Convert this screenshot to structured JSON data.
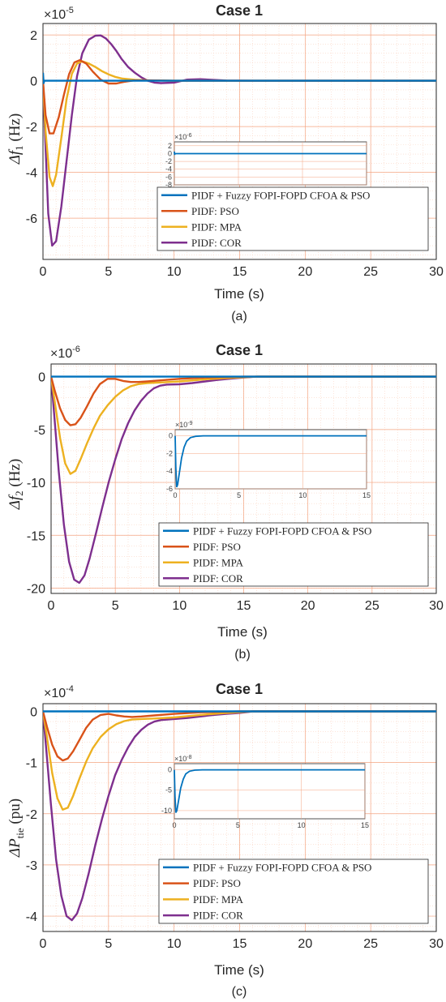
{
  "colors": {
    "series": [
      "#0072BD",
      "#D95319",
      "#EDB120",
      "#7E2F8E"
    ],
    "grid_major": "#f4a582",
    "grid_minor": "#f9d4c2",
    "axis": "#262626"
  },
  "chart_data": [
    {
      "type": "line",
      "title": "Case 1",
      "caption": "(a)",
      "xlabel": "Time (s)",
      "ylabel_main": "Δf",
      "ylabel_sub": "1",
      "ylabel_unit": "(Hz)",
      "exponent_base": "×10",
      "exponent_power": "-5",
      "xlim": [
        0,
        30
      ],
      "ylim": [
        -7.8,
        2.5
      ],
      "xticks": [
        0,
        5,
        10,
        15,
        20,
        25,
        30
      ],
      "xtick_labels": [
        "0",
        "5",
        "10",
        "15",
        "20",
        "25",
        "30"
      ],
      "yticks": [
        2,
        0,
        -2,
        -4,
        -6
      ],
      "ytick_labels": [
        "2",
        "0",
        "-2",
        "-4",
        "-6"
      ],
      "grid": true,
      "minor_grid": true,
      "legend_position": "lower-right",
      "series": [
        {
          "name": "PIDF + Fuzzy FOPI-FOPD CFOA & PSO",
          "x": [
            0,
            0.05,
            0.1,
            0.3,
            30
          ],
          "y": [
            0.35,
            -0.1,
            0,
            0,
            0
          ]
        },
        {
          "name": "PIDF: PSO",
          "x": [
            0,
            0.2,
            0.5,
            0.8,
            1.2,
            1.6,
            2.0,
            2.4,
            2.8,
            3.3,
            3.8,
            4.4,
            5.0,
            5.6,
            6.2,
            7.0,
            8.0,
            10,
            30
          ],
          "y": [
            0,
            -1.5,
            -2.3,
            -2.3,
            -1.6,
            -0.6,
            0.3,
            0.8,
            0.9,
            0.75,
            0.4,
            0.05,
            -0.12,
            -0.12,
            -0.05,
            0.02,
            0.02,
            0,
            0
          ]
        },
        {
          "name": "PIDF: MPA",
          "x": [
            0,
            0.2,
            0.5,
            0.75,
            1.0,
            1.4,
            1.8,
            2.2,
            2.6,
            3.0,
            3.5,
            4.0,
            4.5,
            5.0,
            5.5,
            6.0,
            7.0,
            8.0,
            9.0,
            10,
            30
          ],
          "y": [
            0,
            -2.2,
            -4.2,
            -4.6,
            -4.1,
            -2.5,
            -0.8,
            0.3,
            0.75,
            0.85,
            0.75,
            0.6,
            0.42,
            0.28,
            0.17,
            0.1,
            0.04,
            0.02,
            0.01,
            0,
            0
          ]
        },
        {
          "name": "PIDF: COR",
          "x": [
            0,
            0.2,
            0.4,
            0.7,
            1.0,
            1.4,
            1.8,
            2.2,
            2.6,
            3.0,
            3.5,
            4.0,
            4.4,
            4.8,
            5.2,
            5.6,
            6.0,
            6.5,
            7.0,
            7.5,
            8.0,
            8.5,
            9.0,
            10,
            11,
            12,
            14,
            16,
            30
          ],
          "y": [
            0,
            -2.9,
            -5.8,
            -7.2,
            -7.0,
            -5.5,
            -3.5,
            -1.5,
            0.2,
            1.2,
            1.8,
            1.97,
            1.98,
            1.85,
            1.6,
            1.3,
            0.95,
            0.6,
            0.35,
            0.15,
            0.0,
            -0.08,
            -0.1,
            -0.08,
            0.05,
            0.07,
            0.01,
            0,
            0
          ]
        }
      ],
      "inset": {
        "exponent_base": "×10",
        "exponent_power": "-6",
        "xlim": [
          0,
          15
        ],
        "ylim": [
          -8,
          3
        ],
        "xticks": [
          0,
          5,
          10,
          15
        ],
        "xtick_labels": [
          "0",
          "5",
          "10",
          "15"
        ],
        "yticks": [
          2,
          0,
          -2,
          -4,
          -6,
          -8
        ],
        "ytick_labels": [
          "2",
          "0",
          "-2",
          "-4",
          "-6",
          "-8"
        ],
        "x": [
          0,
          0.02,
          0.05,
          15
        ],
        "y": [
          0.5,
          -0.3,
          0,
          0
        ]
      }
    },
    {
      "type": "line",
      "title": "Case 1",
      "caption": "(b)",
      "xlabel": "Time (s)",
      "ylabel_main": "Δf",
      "ylabel_sub": "2",
      "ylabel_unit": "(Hz)",
      "exponent_base": "×10",
      "exponent_power": "-6",
      "xlim": [
        0,
        30
      ],
      "ylim": [
        -20.5,
        1.2
      ],
      "xticks": [
        0,
        5,
        10,
        15,
        20,
        25,
        30
      ],
      "xtick_labels": [
        "0",
        "5",
        "10",
        "15",
        "20",
        "25",
        "30"
      ],
      "yticks": [
        0,
        -5,
        -10,
        -15,
        -20
      ],
      "ytick_labels": [
        "0",
        "-5",
        "-10",
        "-15",
        "-20"
      ],
      "grid": true,
      "minor_grid": true,
      "legend_position": "lower-right",
      "series": [
        {
          "name": "PIDF + Fuzzy FOPI-FOPD CFOA & PSO",
          "x": [
            0,
            30
          ],
          "y": [
            0,
            0
          ]
        },
        {
          "name": "PIDF: PSO",
          "x": [
            0,
            0.3,
            0.7,
            1.1,
            1.5,
            1.9,
            2.3,
            2.8,
            3.3,
            3.8,
            4.4,
            5.0,
            5.6,
            6.2,
            6.8,
            7.5,
            8.5,
            10,
            12,
            15,
            30
          ],
          "y": [
            0,
            -1.4,
            -3.0,
            -4.1,
            -4.6,
            -4.5,
            -3.9,
            -2.8,
            -1.6,
            -0.7,
            -0.2,
            -0.2,
            -0.4,
            -0.5,
            -0.5,
            -0.45,
            -0.35,
            -0.2,
            -0.08,
            0,
            0
          ]
        },
        {
          "name": "PIDF: MPA",
          "x": [
            0,
            0.3,
            0.7,
            1.1,
            1.5,
            1.9,
            2.3,
            2.8,
            3.3,
            3.8,
            4.4,
            5.0,
            5.6,
            6.2,
            6.8,
            7.5,
            8.5,
            10,
            12,
            14,
            16,
            30
          ],
          "y": [
            0,
            -2.5,
            -5.8,
            -8.2,
            -9.2,
            -8.9,
            -7.8,
            -6.3,
            -4.9,
            -3.7,
            -2.7,
            -1.9,
            -1.3,
            -0.9,
            -0.7,
            -0.6,
            -0.55,
            -0.45,
            -0.25,
            -0.1,
            0,
            0
          ]
        },
        {
          "name": "PIDF: COR",
          "x": [
            0,
            0.3,
            0.6,
            1.0,
            1.4,
            1.8,
            2.2,
            2.6,
            3.0,
            3.5,
            4.0,
            4.5,
            5.0,
            5.5,
            6.0,
            6.5,
            7.0,
            7.5,
            8.0,
            8.5,
            9.0,
            10,
            11,
            12,
            13,
            14,
            15,
            16,
            30
          ],
          "y": [
            0,
            -4.5,
            -9.0,
            -14.0,
            -17.5,
            -19.2,
            -19.5,
            -18.8,
            -17.2,
            -14.8,
            -12.3,
            -9.9,
            -7.8,
            -5.9,
            -4.4,
            -3.2,
            -2.3,
            -1.6,
            -1.1,
            -0.85,
            -0.75,
            -0.72,
            -0.6,
            -0.45,
            -0.3,
            -0.18,
            -0.08,
            0,
            0
          ]
        }
      ],
      "inset": {
        "exponent_base": "×10",
        "exponent_power": "-9",
        "xlim": [
          0,
          15
        ],
        "ylim": [
          -6,
          0.7
        ],
        "xticks": [
          0,
          5,
          10,
          15
        ],
        "xtick_labels": [
          "0",
          "5",
          "10",
          "15"
        ],
        "yticks": [
          0,
          -2,
          -4,
          -6
        ],
        "ytick_labels": [
          "0",
          "-2",
          "-4",
          "-6"
        ],
        "x": [
          0,
          0.05,
          0.12,
          0.2,
          0.35,
          0.5,
          0.7,
          0.9,
          1.2,
          1.6,
          2.2,
          15
        ],
        "y": [
          0,
          -3.5,
          -5.8,
          -5.5,
          -4.0,
          -2.5,
          -1.3,
          -0.6,
          -0.2,
          -0.05,
          0,
          0
        ]
      }
    },
    {
      "type": "line",
      "title": "Case 1",
      "caption": "(c)",
      "xlabel": "Time (s)",
      "ylabel_main": "ΔP",
      "ylabel_sub": "tie",
      "ylabel_unit": "(pu)",
      "exponent_base": "×10",
      "exponent_power": "-4",
      "xlim": [
        0,
        30
      ],
      "ylim": [
        -4.3,
        0.15
      ],
      "xticks": [
        0,
        5,
        10,
        15,
        20,
        25,
        30
      ],
      "xtick_labels": [
        "0",
        "5",
        "10",
        "15",
        "20",
        "25",
        "30"
      ],
      "yticks": [
        0,
        -1,
        -2,
        -3,
        -4
      ],
      "ytick_labels": [
        "0",
        "-1",
        "-2",
        "-3",
        "-4"
      ],
      "grid": true,
      "minor_grid": true,
      "legend_position": "lower-right",
      "series": [
        {
          "name": "PIDF + Fuzzy FOPI-FOPD CFOA & PSO",
          "x": [
            0,
            30
          ],
          "y": [
            0,
            0
          ]
        },
        {
          "name": "PIDF: PSO",
          "x": [
            0,
            0.3,
            0.7,
            1.1,
            1.5,
            1.9,
            2.3,
            2.8,
            3.3,
            3.8,
            4.4,
            5.0,
            5.6,
            6.2,
            6.8,
            7.5,
            8.5,
            10,
            12,
            15,
            30
          ],
          "y": [
            0,
            -0.3,
            -0.65,
            -0.88,
            -0.96,
            -0.92,
            -0.78,
            -0.55,
            -0.32,
            -0.16,
            -0.07,
            -0.05,
            -0.08,
            -0.1,
            -0.11,
            -0.1,
            -0.08,
            -0.05,
            -0.02,
            0,
            0
          ]
        },
        {
          "name": "PIDF: MPA",
          "x": [
            0,
            0.3,
            0.7,
            1.1,
            1.5,
            1.9,
            2.3,
            2.8,
            3.3,
            3.8,
            4.4,
            5.0,
            5.6,
            6.2,
            6.8,
            7.5,
            8.5,
            10,
            12,
            14,
            16,
            30
          ],
          "y": [
            0,
            -0.5,
            -1.2,
            -1.7,
            -1.92,
            -1.88,
            -1.65,
            -1.3,
            -0.98,
            -0.72,
            -0.5,
            -0.35,
            -0.25,
            -0.19,
            -0.16,
            -0.15,
            -0.14,
            -0.12,
            -0.07,
            -0.03,
            0,
            0
          ]
        },
        {
          "name": "PIDF: COR",
          "x": [
            0,
            0.3,
            0.6,
            1.0,
            1.4,
            1.8,
            2.2,
            2.6,
            3.0,
            3.5,
            4.0,
            4.5,
            5.0,
            5.5,
            6.0,
            6.5,
            7.0,
            7.5,
            8.0,
            8.5,
            9.0,
            10,
            11,
            12,
            13,
            14,
            15,
            16,
            30
          ],
          "y": [
            0,
            -0.9,
            -1.8,
            -2.9,
            -3.6,
            -4.0,
            -4.08,
            -3.95,
            -3.65,
            -3.15,
            -2.6,
            -2.1,
            -1.65,
            -1.25,
            -0.95,
            -0.7,
            -0.5,
            -0.36,
            -0.26,
            -0.2,
            -0.17,
            -0.15,
            -0.13,
            -0.1,
            -0.07,
            -0.05,
            -0.03,
            0,
            0
          ]
        }
      ],
      "inset": {
        "exponent_base": "×10",
        "exponent_power": "-8",
        "xlim": [
          0,
          15
        ],
        "ylim": [
          -12,
          1.5
        ],
        "xticks": [
          0,
          5,
          10,
          15
        ],
        "xtick_labels": [
          "0",
          "5",
          "10",
          "15"
        ],
        "yticks": [
          0,
          -5,
          -10
        ],
        "ytick_labels": [
          "0",
          "-5",
          "-10"
        ],
        "x": [
          0,
          0.05,
          0.12,
          0.2,
          0.35,
          0.5,
          0.7,
          0.9,
          1.2,
          1.6,
          2.2,
          15
        ],
        "y": [
          0,
          -6.5,
          -10.5,
          -10.0,
          -7.2,
          -4.5,
          -2.3,
          -1.0,
          -0.35,
          -0.08,
          0,
          0
        ]
      }
    }
  ]
}
